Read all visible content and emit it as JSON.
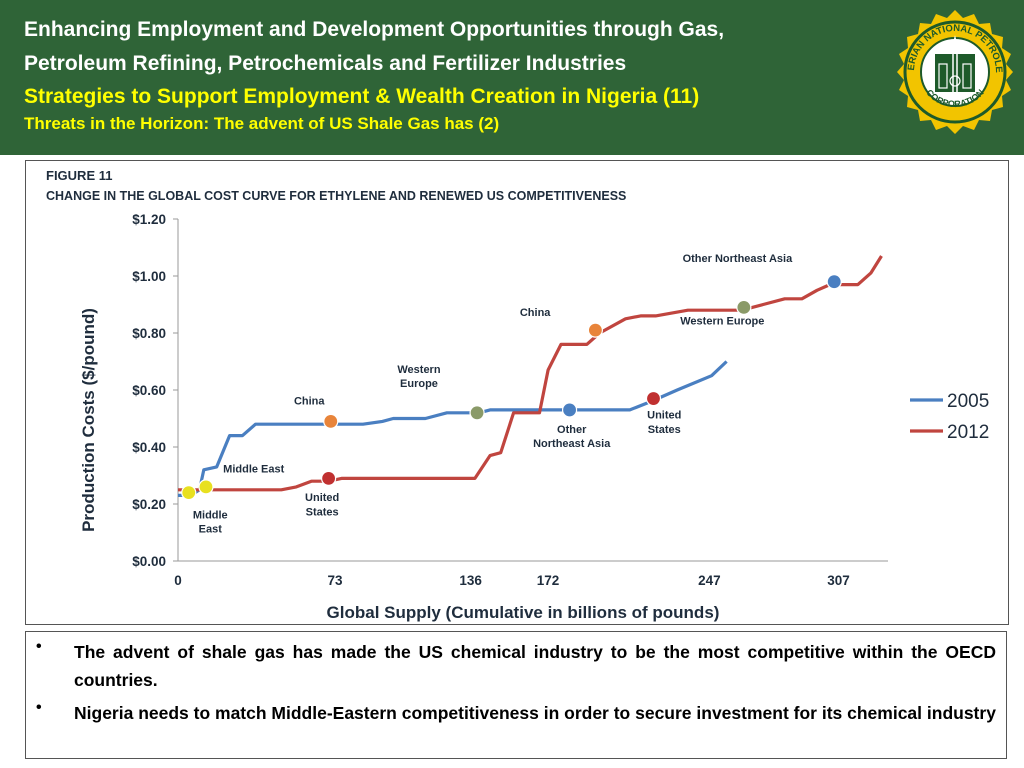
{
  "header": {
    "title_line1": "Enhancing Employment and Development Opportunities through Gas,",
    "title_line2": "Petroleum Refining, Petrochemicals and Fertilizer Industries",
    "subtitle": "Strategies to Support Employment & Wealth Creation in Nigeria (11)",
    "section": "Threats in the Horizon: The advent of US Shale Gas has  (2)",
    "logo_text_top": "NIGERIAN NATIONAL PETROLEUM",
    "logo_text_bottom": "CORPORATION"
  },
  "colors": {
    "header_bg": "#2f6437",
    "title_color": "#ffffff",
    "subtitle_color": "#ffff00",
    "series_2005": "#4a7fc1",
    "series_2012": "#c0453f",
    "logo_ring": "#f2c400"
  },
  "chart_data": {
    "type": "line",
    "figure_label": "FIGURE 11",
    "title": "CHANGE IN THE GLOBAL COST CURVE FOR ETHYLENE AND RENEWED US COMPETITIVENESS",
    "xlabel": "Global Supply (Cumulative in billions of pounds)",
    "ylabel": "Production Costs ($/pound)",
    "xlim": [
      0,
      330
    ],
    "ylim": [
      0,
      1.2
    ],
    "xticks": [
      0,
      73,
      136,
      172,
      247,
      307
    ],
    "yticks": [
      "$0.00",
      "$0.20",
      "$0.40",
      "$0.60",
      "$0.80",
      "$1.00",
      "$1.20"
    ],
    "grid": false,
    "legend_position": "right",
    "series": [
      {
        "name": "2005",
        "color": "#4a7fc1",
        "points": [
          [
            0,
            0.23
          ],
          [
            6,
            0.23
          ],
          [
            10,
            0.25
          ],
          [
            12,
            0.32
          ],
          [
            18,
            0.33
          ],
          [
            24,
            0.44
          ],
          [
            30,
            0.44
          ],
          [
            36,
            0.48
          ],
          [
            78,
            0.48
          ],
          [
            86,
            0.48
          ],
          [
            95,
            0.49
          ],
          [
            100,
            0.5
          ],
          [
            115,
            0.5
          ],
          [
            125,
            0.52
          ],
          [
            140,
            0.52
          ],
          [
            145,
            0.53
          ],
          [
            172,
            0.53
          ],
          [
            210,
            0.53
          ],
          [
            220,
            0.56
          ],
          [
            232,
            0.6
          ],
          [
            248,
            0.65
          ],
          [
            255,
            0.7
          ]
        ]
      },
      {
        "name": "2012",
        "color": "#c0453f",
        "points": [
          [
            0,
            0.25
          ],
          [
            48,
            0.25
          ],
          [
            55,
            0.26
          ],
          [
            62,
            0.28
          ],
          [
            70,
            0.28
          ],
          [
            76,
            0.29
          ],
          [
            138,
            0.29
          ],
          [
            145,
            0.37
          ],
          [
            150,
            0.38
          ],
          [
            156,
            0.52
          ],
          [
            163,
            0.52
          ],
          [
            168,
            0.52
          ],
          [
            172,
            0.67
          ],
          [
            178,
            0.76
          ],
          [
            190,
            0.76
          ],
          [
            196,
            0.8
          ],
          [
            208,
            0.85
          ],
          [
            215,
            0.86
          ],
          [
            222,
            0.86
          ],
          [
            237,
            0.88
          ],
          [
            262,
            0.88
          ],
          [
            272,
            0.9
          ],
          [
            282,
            0.92
          ],
          [
            290,
            0.92
          ],
          [
            297,
            0.95
          ],
          [
            303,
            0.97
          ],
          [
            316,
            0.97
          ],
          [
            322,
            1.01
          ],
          [
            327,
            1.07
          ]
        ]
      }
    ],
    "markers": [
      {
        "x": 5,
        "y": 0.24,
        "color": "#e8e020"
      },
      {
        "x": 13,
        "y": 0.26,
        "color": "#e8e020"
      },
      {
        "x": 70,
        "y": 0.29,
        "color": "#c03030"
      },
      {
        "x": 71,
        "y": 0.49,
        "color": "#e8843a"
      },
      {
        "x": 139,
        "y": 0.52,
        "color": "#8a9a68"
      },
      {
        "x": 182,
        "y": 0.53,
        "color": "#4a7fc1"
      },
      {
        "x": 194,
        "y": 0.81,
        "color": "#e8843a"
      },
      {
        "x": 221,
        "y": 0.57,
        "color": "#c03030"
      },
      {
        "x": 263,
        "y": 0.89,
        "color": "#8a9a68"
      },
      {
        "x": 305,
        "y": 0.98,
        "color": "#4a7fc1"
      }
    ],
    "annotations": [
      {
        "text": "Middle East",
        "x": 21,
        "y": 0.31,
        "align": "start"
      },
      {
        "text": "Middle",
        "x": 15,
        "y": 0.15,
        "align": "middle"
      },
      {
        "text": "East",
        "x": 15,
        "y": 0.1,
        "align": "middle"
      },
      {
        "text": "China",
        "x": 61,
        "y": 0.55,
        "align": "middle"
      },
      {
        "text": "United",
        "x": 67,
        "y": 0.21,
        "align": "middle"
      },
      {
        "text": "States",
        "x": 67,
        "y": 0.16,
        "align": "middle"
      },
      {
        "text": "Western",
        "x": 112,
        "y": 0.66,
        "align": "middle"
      },
      {
        "text": "Europe",
        "x": 112,
        "y": 0.61,
        "align": "middle"
      },
      {
        "text": "China",
        "x": 166,
        "y": 0.86,
        "align": "middle"
      },
      {
        "text": "Other",
        "x": 183,
        "y": 0.45,
        "align": "middle"
      },
      {
        "text": "Northeast Asia",
        "x": 183,
        "y": 0.4,
        "align": "middle"
      },
      {
        "text": "United",
        "x": 226,
        "y": 0.5,
        "align": "middle"
      },
      {
        "text": "States",
        "x": 226,
        "y": 0.45,
        "align": "middle"
      },
      {
        "text": "Other Northeast Asia",
        "x": 260,
        "y": 1.05,
        "align": "middle"
      },
      {
        "text": "Western Europe",
        "x": 253,
        "y": 0.83,
        "align": "middle"
      }
    ]
  },
  "bullets": [
    "The advent of shale gas has made the US chemical industry to be the most competitive within the OECD countries.",
    "Nigeria needs to match Middle-Eastern competitiveness in order to secure investment for its chemical industry"
  ],
  "bullet_symbol": "•"
}
